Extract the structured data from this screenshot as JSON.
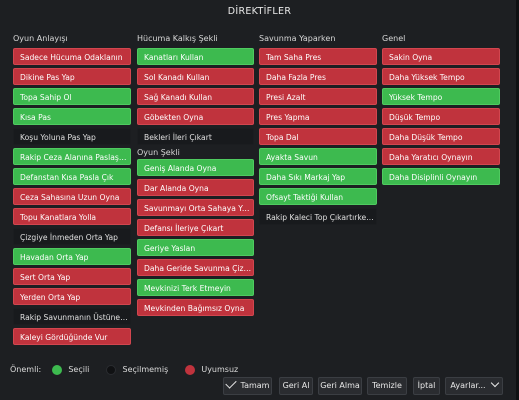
{
  "window": {
    "title": "DİREKTİFLER"
  },
  "columns": {
    "oyun_anlayisi": {
      "header": "Oyun Anlayışı",
      "items": [
        {
          "label": "Sadece Hücuma Odaklanın",
          "state": "red"
        },
        {
          "label": "Dikine Pas Yap",
          "state": "red"
        },
        {
          "label": "Topa Sahip Ol",
          "state": "green"
        },
        {
          "label": "Kısa Pas",
          "state": "green"
        },
        {
          "label": "Koşu Yoluna Pas Yap",
          "state": "dark"
        },
        {
          "label": "Rakip Ceza Alanına Paslaşarak Gir",
          "state": "green"
        },
        {
          "label": "Defanstan Kısa Pasla Çık",
          "state": "green"
        },
        {
          "label": "Ceza Sahasına Uzun Oyna",
          "state": "red"
        },
        {
          "label": "Topu Kanatlara Yolla",
          "state": "red"
        },
        {
          "label": "Çizgiye İnmeden Orta Yap",
          "state": "dark"
        },
        {
          "label": "Havadan Orta Yap",
          "state": "green"
        },
        {
          "label": "Sert Orta Yap",
          "state": "red"
        },
        {
          "label": "Yerden Orta Yap",
          "state": "red"
        },
        {
          "label": "Rakip Savunmanın Üstüne Git",
          "state": "dark"
        },
        {
          "label": "Kaleyi Gördüğünde Vur",
          "state": "red"
        }
      ]
    },
    "hucuma_kalkis": {
      "header": "Hücuma Kalkış Şekli",
      "items": [
        {
          "label": "Kanatları Kullan",
          "state": "green"
        },
        {
          "label": "Sol Kanadı Kullan",
          "state": "red"
        },
        {
          "label": "Sağ Kanadı Kullan",
          "state": "red"
        },
        {
          "label": "Göbekten Oyna",
          "state": "red"
        },
        {
          "label": "Bekleri İleri Çıkart",
          "state": "dark"
        }
      ]
    },
    "oyun_sekli": {
      "header": "Oyun Şekli",
      "items": [
        {
          "label": "Geniş Alanda Oyna",
          "state": "green"
        },
        {
          "label": "Dar Alanda Oyna",
          "state": "red"
        },
        {
          "label": "Savunmayı Orta Sahaya Yaklaştır",
          "state": "red"
        },
        {
          "label": "Defansı İleriye Çıkart",
          "state": "red"
        },
        {
          "label": "Geriye Yaslan",
          "state": "green"
        },
        {
          "label": "Daha Geride Savunma Çizgisi",
          "state": "red"
        },
        {
          "label": "Mevkinizi Terk Etmeyin",
          "state": "green"
        },
        {
          "label": "Mevkinden Bağımsız Oyna",
          "state": "red"
        }
      ]
    },
    "savunma": {
      "header": "Savunma Yaparken",
      "items": [
        {
          "label": "Tam Saha Pres",
          "state": "red"
        },
        {
          "label": "Daha Fazla Pres",
          "state": "red"
        },
        {
          "label": "Presi Azalt",
          "state": "red"
        },
        {
          "label": "Pres Yapma",
          "state": "red"
        },
        {
          "label": "Topa Dal",
          "state": "red"
        },
        {
          "label": "Ayakta Savun",
          "state": "green"
        },
        {
          "label": "Daha Sıkı Markaj Yap",
          "state": "green"
        },
        {
          "label": "Ofsayt Taktiği Kullan",
          "state": "green"
        },
        {
          "label": "Rakip Kaleci Top Çıkartırken Bask",
          "state": "dark"
        }
      ]
    },
    "genel": {
      "header": "Genel",
      "items": [
        {
          "label": "Sakin Oyna",
          "state": "red"
        },
        {
          "label": "Daha Yüksek Tempo",
          "state": "red"
        },
        {
          "label": "Yüksek Tempo",
          "state": "green"
        },
        {
          "label": "Düşük Tempo",
          "state": "red"
        },
        {
          "label": "Daha Düşük Tempo",
          "state": "red"
        },
        {
          "label": "Daha Yaratıcı Oynayın",
          "state": "red"
        },
        {
          "label": "Daha Disiplinli Oynayın",
          "state": "green"
        }
      ]
    }
  },
  "legend": {
    "title": "Önemli:",
    "selected": "Seçili",
    "unselected": "Seçilmemiş",
    "unsuitable": "Uyumsuz"
  },
  "footer": {
    "ok": "Tamam",
    "undo": "Geri Al",
    "redo": "Geri Alma",
    "clear": "Temizle",
    "cancel": "İptal",
    "settings": "Ayarlar..."
  },
  "colors": {
    "selected": "#3dba4f",
    "unsuitable": "#c0333d",
    "unselected": "#181a1d"
  }
}
